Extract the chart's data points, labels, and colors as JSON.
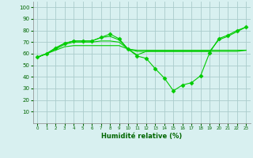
{
  "x": [
    0,
    1,
    2,
    3,
    4,
    5,
    6,
    7,
    8,
    9,
    10,
    11,
    12,
    13,
    14,
    15,
    16,
    17,
    18,
    19,
    20,
    21,
    22,
    23
  ],
  "line1": [
    57,
    60,
    65,
    69,
    71,
    71,
    71,
    74,
    77,
    73,
    64,
    58,
    56,
    47,
    39,
    28,
    33,
    35,
    41,
    61,
    73,
    76,
    80,
    83
  ],
  "line2": [
    57,
    60,
    65,
    69,
    71,
    71,
    71,
    74,
    75,
    72,
    64,
    59,
    62,
    62,
    62,
    62,
    62,
    62,
    62,
    62,
    72,
    75,
    79,
    83
  ],
  "line3": [
    57,
    60,
    64,
    68,
    70,
    70,
    70,
    71,
    71,
    70,
    64,
    62,
    62,
    62,
    62,
    62,
    62,
    62,
    62,
    62,
    62,
    62,
    62,
    63
  ],
  "line4": [
    57,
    60,
    63,
    66,
    67,
    67,
    67,
    67,
    67,
    67,
    64,
    63,
    63,
    63,
    63,
    63,
    63,
    63,
    63,
    63,
    63,
    63,
    63,
    63
  ],
  "xlabel": "Humidité relative (%)",
  "ylim": [
    0,
    105
  ],
  "yticks": [
    10,
    20,
    30,
    40,
    50,
    60,
    70,
    80,
    90,
    100
  ],
  "xticks": [
    0,
    1,
    2,
    3,
    4,
    5,
    6,
    7,
    8,
    9,
    10,
    11,
    12,
    13,
    14,
    15,
    16,
    17,
    18,
    19,
    20,
    21,
    22,
    23
  ],
  "line_color": "#00cc00",
  "bg_color": "#d8f0f0",
  "grid_color": "#aacccc",
  "marker": "D",
  "markersize": 2.5
}
